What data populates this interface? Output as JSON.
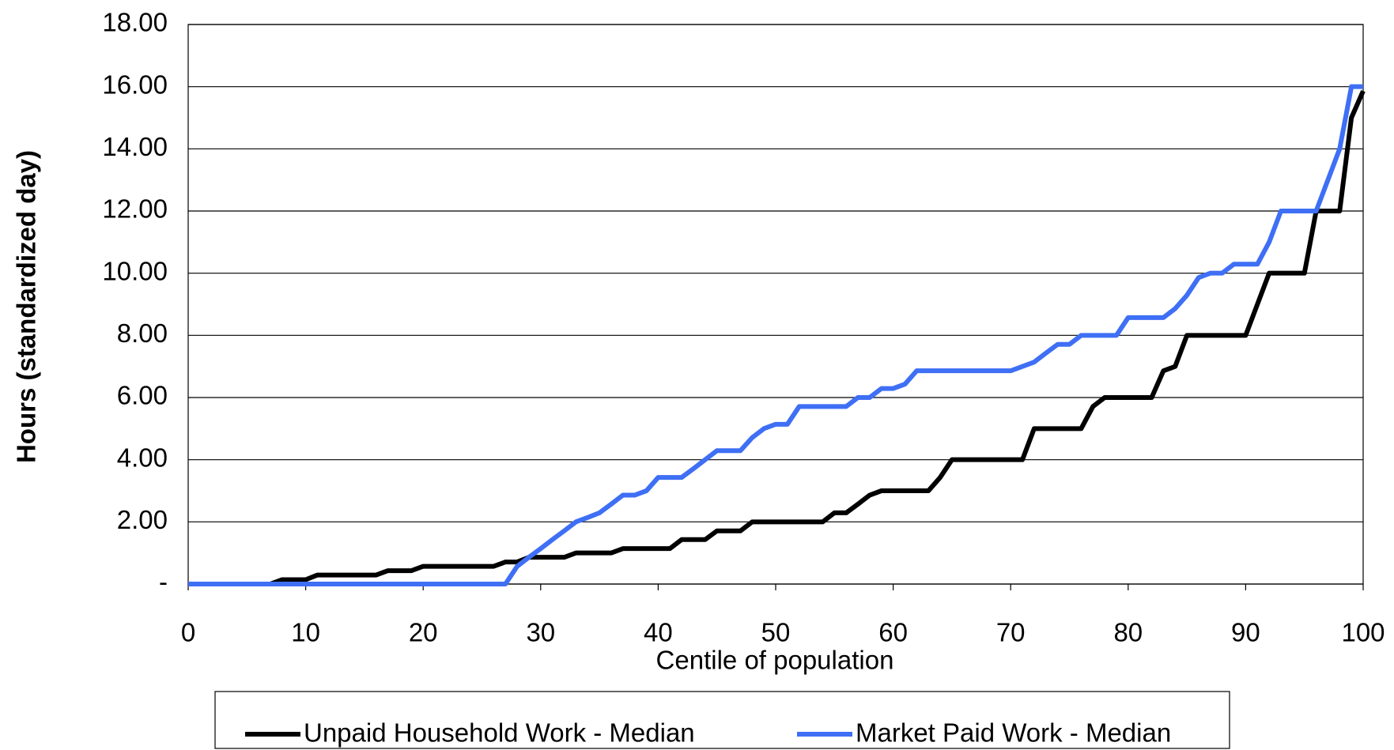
{
  "chart_data": {
    "type": "line",
    "xlabel": "Centile of population",
    "ylabel": "Hours (standardized day)",
    "x": [
      0,
      1,
      2,
      3,
      4,
      5,
      6,
      7,
      8,
      9,
      10,
      11,
      12,
      13,
      14,
      15,
      16,
      17,
      18,
      19,
      20,
      21,
      22,
      23,
      24,
      25,
      26,
      27,
      28,
      29,
      30,
      31,
      32,
      33,
      34,
      35,
      36,
      37,
      38,
      39,
      40,
      41,
      42,
      43,
      44,
      45,
      46,
      47,
      48,
      49,
      50,
      51,
      52,
      53,
      54,
      55,
      56,
      57,
      58,
      59,
      60,
      61,
      62,
      63,
      64,
      65,
      66,
      67,
      68,
      69,
      70,
      71,
      72,
      73,
      74,
      75,
      76,
      77,
      78,
      79,
      80,
      81,
      82,
      83,
      84,
      85,
      86,
      87,
      88,
      89,
      90,
      91,
      92,
      93,
      94,
      95,
      96,
      97,
      98,
      99,
      100
    ],
    "series": [
      {
        "name": "Unpaid Household Work - Median",
        "color": "#000000",
        "values": [
          0,
          0,
          0,
          0,
          0,
          0,
          0,
          0,
          0.14,
          0.14,
          0.14,
          0.29,
          0.29,
          0.29,
          0.29,
          0.29,
          0.29,
          0.43,
          0.43,
          0.43,
          0.57,
          0.57,
          0.57,
          0.57,
          0.57,
          0.57,
          0.57,
          0.71,
          0.71,
          0.86,
          0.86,
          0.86,
          0.86,
          1.0,
          1.0,
          1.0,
          1.0,
          1.14,
          1.14,
          1.14,
          1.14,
          1.14,
          1.43,
          1.43,
          1.43,
          1.71,
          1.71,
          1.71,
          2.0,
          2.0,
          2.0,
          2.0,
          2.0,
          2.0,
          2.0,
          2.29,
          2.29,
          2.57,
          2.86,
          3.0,
          3.0,
          3.0,
          3.0,
          3.0,
          3.43,
          4.0,
          4.0,
          4.0,
          4.0,
          4.0,
          4.0,
          4.0,
          5.0,
          5.0,
          5.0,
          5.0,
          5.0,
          5.71,
          6.0,
          6.0,
          6.0,
          6.0,
          6.0,
          6.86,
          7.0,
          8.0,
          8.0,
          8.0,
          8.0,
          8.0,
          8.0,
          9.0,
          10.0,
          10.0,
          10.0,
          10.0,
          12.0,
          12.0,
          12.0,
          15.0,
          15.86
        ]
      },
      {
        "name": "Market Paid Work - Median",
        "color": "#3e6ff5",
        "values": [
          0,
          0,
          0,
          0,
          0,
          0,
          0,
          0,
          0,
          0,
          0,
          0,
          0,
          0,
          0,
          0,
          0,
          0,
          0,
          0,
          0,
          0,
          0,
          0,
          0,
          0,
          0,
          0,
          0.57,
          0.86,
          1.14,
          1.43,
          1.71,
          2.0,
          2.14,
          2.29,
          2.57,
          2.86,
          2.86,
          3.0,
          3.43,
          3.43,
          3.43,
          3.71,
          4.0,
          4.29,
          4.29,
          4.29,
          4.71,
          5.0,
          5.14,
          5.14,
          5.71,
          5.71,
          5.71,
          5.71,
          5.71,
          6.0,
          6.0,
          6.29,
          6.29,
          6.43,
          6.86,
          6.86,
          6.86,
          6.86,
          6.86,
          6.86,
          6.86,
          6.86,
          6.86,
          7.0,
          7.14,
          7.43,
          7.71,
          7.71,
          8.0,
          8.0,
          8.0,
          8.0,
          8.57,
          8.57,
          8.57,
          8.57,
          8.86,
          9.29,
          9.86,
          10.0,
          10.0,
          10.29,
          10.29,
          10.29,
          11.0,
          12.0,
          12.0,
          12.0,
          12.0,
          13.0,
          14.0,
          16.0,
          16.0
        ]
      }
    ],
    "xlim": [
      0,
      100
    ],
    "xticks": [
      0,
      10,
      20,
      30,
      40,
      50,
      60,
      70,
      80,
      90,
      100
    ],
    "ylim": [
      0,
      18
    ],
    "yticks": [
      {
        "value": 0,
        "label": "-"
      },
      {
        "value": 2,
        "label": "2.00"
      },
      {
        "value": 4,
        "label": "4.00"
      },
      {
        "value": 6,
        "label": "6.00"
      },
      {
        "value": 8,
        "label": "8.00"
      },
      {
        "value": 10,
        "label": "10.00"
      },
      {
        "value": 12,
        "label": "12.00"
      },
      {
        "value": 14,
        "label": "14.00"
      },
      {
        "value": 16,
        "label": "16.00"
      },
      {
        "value": 18,
        "label": "18.00"
      }
    ],
    "grid": true,
    "legend": "bottom"
  }
}
